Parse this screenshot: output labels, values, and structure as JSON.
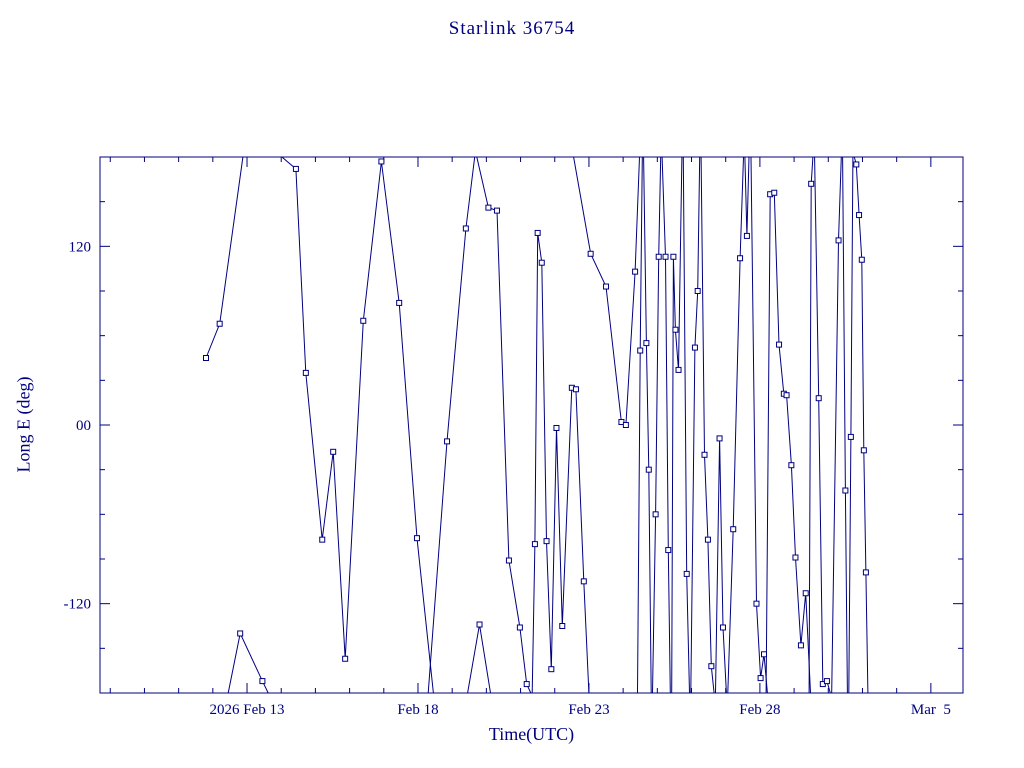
{
  "title": "Starlink 36754",
  "colors": {
    "accent": "#000080",
    "background": "#ffffff"
  },
  "chart_data": {
    "type": "line",
    "title": "Starlink 36754",
    "xlabel": "Time(UTC)",
    "ylabel": "Long E (deg)",
    "x_unit": "days since 2026 Feb 13 00:00 UTC",
    "xlim": [
      -4.3,
      20.94
    ],
    "ylim": [
      -180,
      180
    ],
    "grid": false,
    "legend": "none",
    "line_color": "#000080",
    "marker": "open-square",
    "x_ticks": [
      {
        "value": 0,
        "label": "2026 Feb 13"
      },
      {
        "value": 5,
        "label": "Feb 18"
      },
      {
        "value": 10,
        "label": "Feb 23"
      },
      {
        "value": 15,
        "label": "Feb 28"
      },
      {
        "value": 20,
        "label": "Mar  5"
      }
    ],
    "y_ticks": [
      {
        "value": -120,
        "label": "-120"
      },
      {
        "value": 0,
        "label": "00"
      },
      {
        "value": 120,
        "label": "120"
      }
    ],
    "x_minor_step": 1,
    "y_minor_step": 30,
    "segments": [
      [
        [
          -1.2,
          45
        ],
        [
          -0.8,
          68
        ],
        [
          -0.12,
          180
        ]
      ],
      [
        [
          -0.55,
          -180
        ],
        [
          -0.2,
          -140
        ],
        [
          0.45,
          -172
        ],
        [
          0.62,
          -180
        ]
      ],
      [
        [
          1.02,
          180
        ],
        [
          1.43,
          172
        ],
        [
          1.72,
          35
        ],
        [
          2.2,
          -77
        ],
        [
          2.52,
          -18
        ],
        [
          2.87,
          -157
        ],
        [
          3.4,
          70
        ],
        [
          3.93,
          177
        ],
        [
          4.45,
          82
        ],
        [
          4.97,
          -76
        ],
        [
          5.45,
          -180
        ]
      ],
      [
        [
          5.3,
          -180
        ],
        [
          5.85,
          -11
        ],
        [
          6.4,
          132
        ],
        [
          6.66,
          180
        ]
      ],
      [
        [
          6.45,
          -180
        ],
        [
          6.8,
          -134
        ],
        [
          7.12,
          -180
        ]
      ],
      [
        [
          6.72,
          180
        ],
        [
          7.06,
          146
        ],
        [
          7.31,
          144
        ],
        [
          7.66,
          -91
        ],
        [
          7.98,
          -136
        ],
        [
          8.18,
          -174
        ],
        [
          8.3,
          -180
        ]
      ],
      [
        [
          8.34,
          -180
        ],
        [
          8.42,
          -80
        ],
        [
          8.5,
          129
        ],
        [
          8.62,
          109
        ],
        [
          8.76,
          -78
        ],
        [
          8.9,
          -164
        ],
        [
          9.05,
          -2
        ],
        [
          9.22,
          -135
        ],
        [
          9.5,
          25
        ],
        [
          9.62,
          24
        ],
        [
          9.85,
          -105
        ],
        [
          10.0,
          -180
        ]
      ],
      [
        [
          9.55,
          180
        ],
        [
          10.05,
          115
        ],
        [
          10.5,
          93
        ],
        [
          10.95,
          2
        ],
        [
          11.08,
          0
        ],
        [
          11.35,
          103
        ],
        [
          11.48,
          180
        ]
      ],
      [
        [
          11.42,
          -180
        ],
        [
          11.5,
          50
        ],
        [
          11.56,
          180
        ]
      ],
      [
        [
          11.6,
          180
        ],
        [
          11.68,
          55
        ],
        [
          11.75,
          -30
        ],
        [
          11.82,
          -180
        ]
      ],
      [
        [
          11.86,
          -180
        ],
        [
          11.95,
          -60
        ],
        [
          12.04,
          113
        ],
        [
          12.1,
          180
        ]
      ],
      [
        [
          12.14,
          180
        ],
        [
          12.24,
          113
        ],
        [
          12.32,
          -84
        ],
        [
          12.38,
          -180
        ]
      ],
      [
        [
          12.42,
          -180
        ],
        [
          12.47,
          113
        ],
        [
          12.53,
          64
        ],
        [
          12.62,
          37
        ],
        [
          12.72,
          180
        ]
      ],
      [
        [
          12.76,
          180
        ],
        [
          12.86,
          -100
        ],
        [
          12.94,
          -180
        ]
      ],
      [
        [
          12.98,
          -180
        ],
        [
          13.1,
          52
        ],
        [
          13.18,
          90
        ],
        [
          13.24,
          180
        ]
      ],
      [
        [
          13.28,
          180
        ],
        [
          13.38,
          -20
        ],
        [
          13.48,
          -77
        ],
        [
          13.58,
          -162
        ],
        [
          13.66,
          -180
        ]
      ],
      [
        [
          13.7,
          -180
        ],
        [
          13.82,
          -9
        ],
        [
          13.92,
          -136
        ],
        [
          14.02,
          -180
        ]
      ],
      [
        [
          14.06,
          -180
        ],
        [
          14.22,
          -70
        ],
        [
          14.42,
          112
        ],
        [
          14.52,
          180
        ]
      ],
      [
        [
          14.56,
          180
        ],
        [
          14.62,
          127
        ],
        [
          14.68,
          180
        ]
      ],
      [
        [
          14.74,
          180
        ],
        [
          14.9,
          -120
        ],
        [
          15.02,
          -170
        ],
        [
          15.12,
          -154
        ],
        [
          15.22,
          -180
        ]
      ],
      [
        [
          15.18,
          -180
        ],
        [
          15.3,
          155
        ],
        [
          15.42,
          156
        ],
        [
          15.56,
          54
        ],
        [
          15.7,
          21
        ],
        [
          15.78,
          20
        ],
        [
          15.92,
          -27
        ],
        [
          16.04,
          -89
        ],
        [
          16.2,
          -148
        ],
        [
          16.34,
          -113
        ],
        [
          16.48,
          -180
        ]
      ],
      [
        [
          16.44,
          -180
        ],
        [
          16.5,
          162
        ],
        [
          16.55,
          180
        ]
      ],
      [
        [
          16.6,
          180
        ],
        [
          16.72,
          18
        ],
        [
          16.84,
          -174
        ],
        [
          16.96,
          -172
        ],
        [
          17.06,
          -180
        ]
      ],
      [
        [
          17.1,
          -180
        ],
        [
          17.3,
          124
        ],
        [
          17.38,
          180
        ]
      ],
      [
        [
          17.42,
          180
        ],
        [
          17.5,
          -44
        ],
        [
          17.56,
          -180
        ]
      ],
      [
        [
          17.6,
          -180
        ],
        [
          17.66,
          -8
        ],
        [
          17.72,
          180
        ]
      ],
      [
        [
          17.76,
          180
        ],
        [
          17.82,
          175
        ],
        [
          17.9,
          141
        ],
        [
          17.98,
          111
        ],
        [
          18.04,
          -17
        ],
        [
          18.1,
          -99
        ],
        [
          18.16,
          -180
        ]
      ]
    ]
  }
}
